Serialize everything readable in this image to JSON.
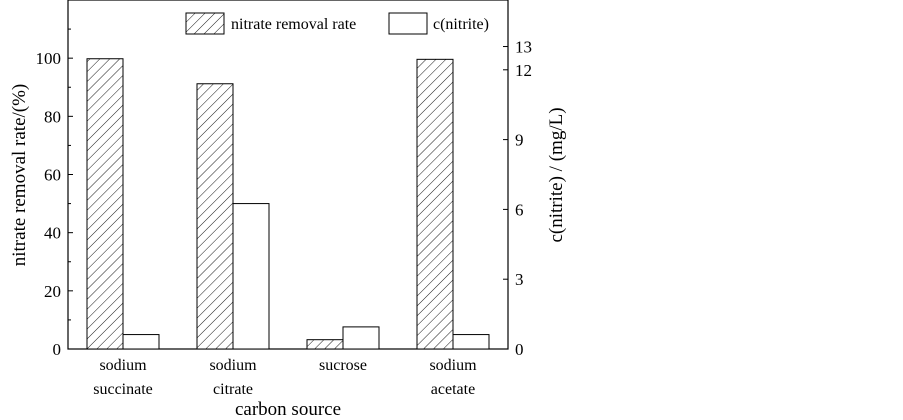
{
  "chart_data": {
    "type": "bar",
    "categories": [
      [
        "sodium",
        "succinate"
      ],
      [
        "sodium",
        "citrate"
      ],
      [
        "sucrose"
      ],
      [
        "sodium",
        "acetate"
      ]
    ],
    "series": [
      {
        "name": "nitrate removal rate",
        "axis": "left",
        "pattern": "hatched",
        "values": [
          99.8,
          91.2,
          3.2,
          99.6
        ]
      },
      {
        "name": "c(nitrite)",
        "axis": "right",
        "pattern": "empty",
        "values": [
          0.62,
          6.25,
          0.95,
          0.62
        ]
      }
    ],
    "xlabel": "carbon source",
    "ylabel": "nitrate removal rate/(%)",
    "y2label": "c(nitrite) / (mg/L)",
    "ylim": [
      0,
      120
    ],
    "y2lim": [
      0,
      15
    ],
    "yticks": [
      0,
      20,
      40,
      60,
      80,
      100
    ],
    "y2ticks": [
      0,
      3,
      6,
      9,
      12,
      13
    ],
    "grid": false,
    "legend_position": "top"
  }
}
